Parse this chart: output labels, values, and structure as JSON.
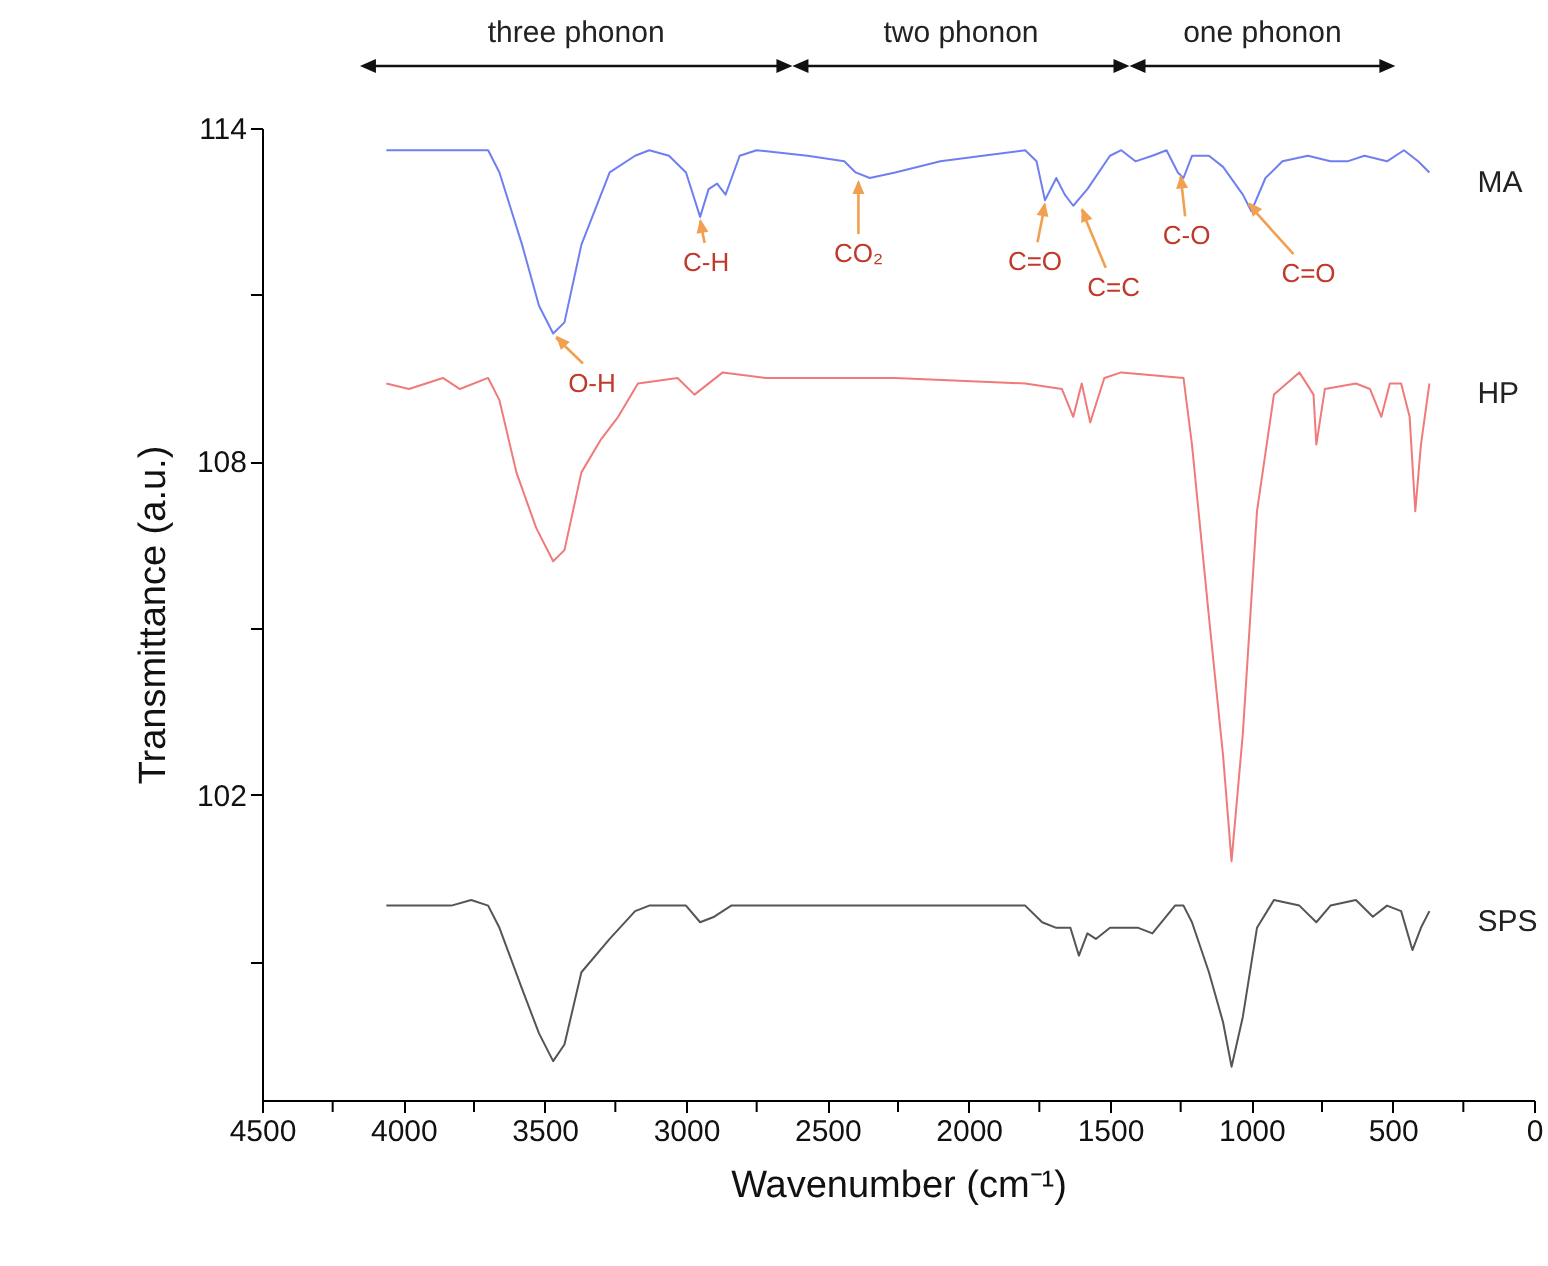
{
  "chart_data": {
    "type": "line",
    "xlabel": "Wavenumber (cm⁻¹)",
    "ylabel": "Transmittance (a.u.)",
    "xlim": [
      4500,
      0
    ],
    "xticks": [
      4500,
      {
        "value": 4250,
        "label": null
      },
      4000,
      {
        "value": 3750,
        "label": null
      },
      3500,
      {
        "value": 3250,
        "label": null
      },
      3000,
      {
        "value": 2750,
        "label": null
      },
      2500,
      {
        "value": 2250,
        "label": null
      },
      2000,
      {
        "value": 1750,
        "label": null
      },
      1500,
      {
        "value": 1250,
        "label": null
      },
      1000,
      {
        "value": 750,
        "label": null
      },
      500,
      {
        "value": 250,
        "label": null
      },
      0
    ],
    "ylim": [
      96.5,
      114
    ],
    "yticks": [
      {
        "value": 99,
        "label": null
      },
      102,
      {
        "value": 105,
        "label": null
      },
      108,
      {
        "value": 111,
        "label": null
      },
      114
    ],
    "legend": false,
    "series": [
      {
        "name": "MA",
        "color": "#6f7ff0",
        "x": [
          4060,
          3700,
          3660,
          3580,
          3520,
          3470,
          3430,
          3370,
          3270,
          3180,
          3130,
          3060,
          3000,
          2950,
          2920,
          2890,
          2860,
          2810,
          2750,
          2570,
          2440,
          2400,
          2350,
          2260,
          2100,
          1950,
          1800,
          1760,
          1730,
          1690,
          1660,
          1630,
          1580,
          1500,
          1460,
          1410,
          1350,
          1300,
          1260,
          1240,
          1210,
          1150,
          1100,
          1030,
          1000,
          950,
          890,
          800,
          720,
          660,
          600,
          520,
          460,
          410,
          370
        ],
        "values": [
          113.6,
          113.6,
          113.2,
          111.9,
          110.8,
          110.3,
          110.5,
          111.9,
          113.2,
          113.5,
          113.6,
          113.5,
          113.2,
          112.4,
          112.9,
          113.0,
          112.8,
          113.5,
          113.6,
          113.5,
          113.4,
          113.2,
          113.1,
          113.2,
          113.4,
          113.5,
          113.6,
          113.4,
          112.7,
          113.1,
          112.8,
          112.6,
          112.9,
          113.5,
          113.6,
          113.4,
          113.5,
          113.6,
          113.2,
          113.1,
          113.5,
          113.5,
          113.3,
          112.8,
          112.5,
          113.1,
          113.4,
          113.5,
          113.4,
          113.4,
          113.5,
          113.4,
          113.6,
          113.4,
          113.2
        ]
      },
      {
        "name": "HP",
        "color": "#f07a7a",
        "x": [
          4060,
          3980,
          3860,
          3800,
          3700,
          3660,
          3600,
          3530,
          3470,
          3430,
          3370,
          3300,
          3240,
          3170,
          3030,
          2970,
          2870,
          2720,
          2260,
          1800,
          1670,
          1630,
          1600,
          1570,
          1520,
          1460,
          1240,
          1210,
          1150,
          1100,
          1070,
          1030,
          980,
          920,
          830,
          780,
          770,
          740,
          630,
          580,
          540,
          510,
          470,
          440,
          420,
          400,
          370
        ],
        "values": [
          109.4,
          109.3,
          109.5,
          109.3,
          109.5,
          109.1,
          107.8,
          106.8,
          106.2,
          106.4,
          107.8,
          108.4,
          108.8,
          109.4,
          109.5,
          109.2,
          109.6,
          109.5,
          109.5,
          109.4,
          109.3,
          108.8,
          109.4,
          108.7,
          109.5,
          109.6,
          109.5,
          108.3,
          105.2,
          102.7,
          100.8,
          103.1,
          107.1,
          109.2,
          109.6,
          109.2,
          108.3,
          109.3,
          109.4,
          109.3,
          108.8,
          109.4,
          109.4,
          108.8,
          107.1,
          108.3,
          109.4
        ]
      },
      {
        "name": "SPS",
        "color": "#555555",
        "x": [
          4060,
          3830,
          3760,
          3700,
          3660,
          3580,
          3520,
          3470,
          3430,
          3370,
          3270,
          3180,
          3130,
          3000,
          2950,
          2900,
          2840,
          2570,
          2260,
          1950,
          1800,
          1740,
          1690,
          1640,
          1610,
          1580,
          1550,
          1500,
          1400,
          1350,
          1270,
          1240,
          1210,
          1150,
          1100,
          1070,
          1030,
          980,
          920,
          830,
          770,
          720,
          630,
          570,
          520,
          470,
          430,
          400,
          370
        ],
        "values": [
          100.0,
          100.0,
          100.1,
          100.0,
          99.6,
          98.5,
          97.7,
          97.2,
          97.5,
          98.8,
          99.4,
          99.9,
          100.0,
          100.0,
          99.7,
          99.8,
          100.0,
          100.0,
          100.0,
          100.0,
          100.0,
          99.7,
          99.6,
          99.6,
          99.1,
          99.5,
          99.4,
          99.6,
          99.6,
          99.5,
          100.0,
          100.0,
          99.7,
          98.8,
          97.9,
          97.1,
          98.0,
          99.6,
          100.1,
          100.0,
          99.7,
          100.0,
          100.1,
          99.8,
          100.0,
          99.9,
          99.2,
          99.6,
          99.9
        ]
      }
    ],
    "annotations": [
      "three phonon",
      "two phonon",
      "one phonon",
      {
        "text": "O-H",
        "x": 3460,
        "y": 110.3
      },
      {
        "text": "C-H",
        "x": 2950,
        "y": 112.4
      },
      {
        "text": "CO₂",
        "x": 2390,
        "y": 113.1
      },
      {
        "text": "C=O",
        "x": 1730,
        "y": 112.7
      },
      {
        "text": "C=C",
        "x": 1600,
        "y": 112.6
      },
      {
        "text": "C-O",
        "x": 1250,
        "y": 113.2
      },
      {
        "text": "C=O",
        "x": 1010,
        "y": 112.7
      }
    ]
  }
}
